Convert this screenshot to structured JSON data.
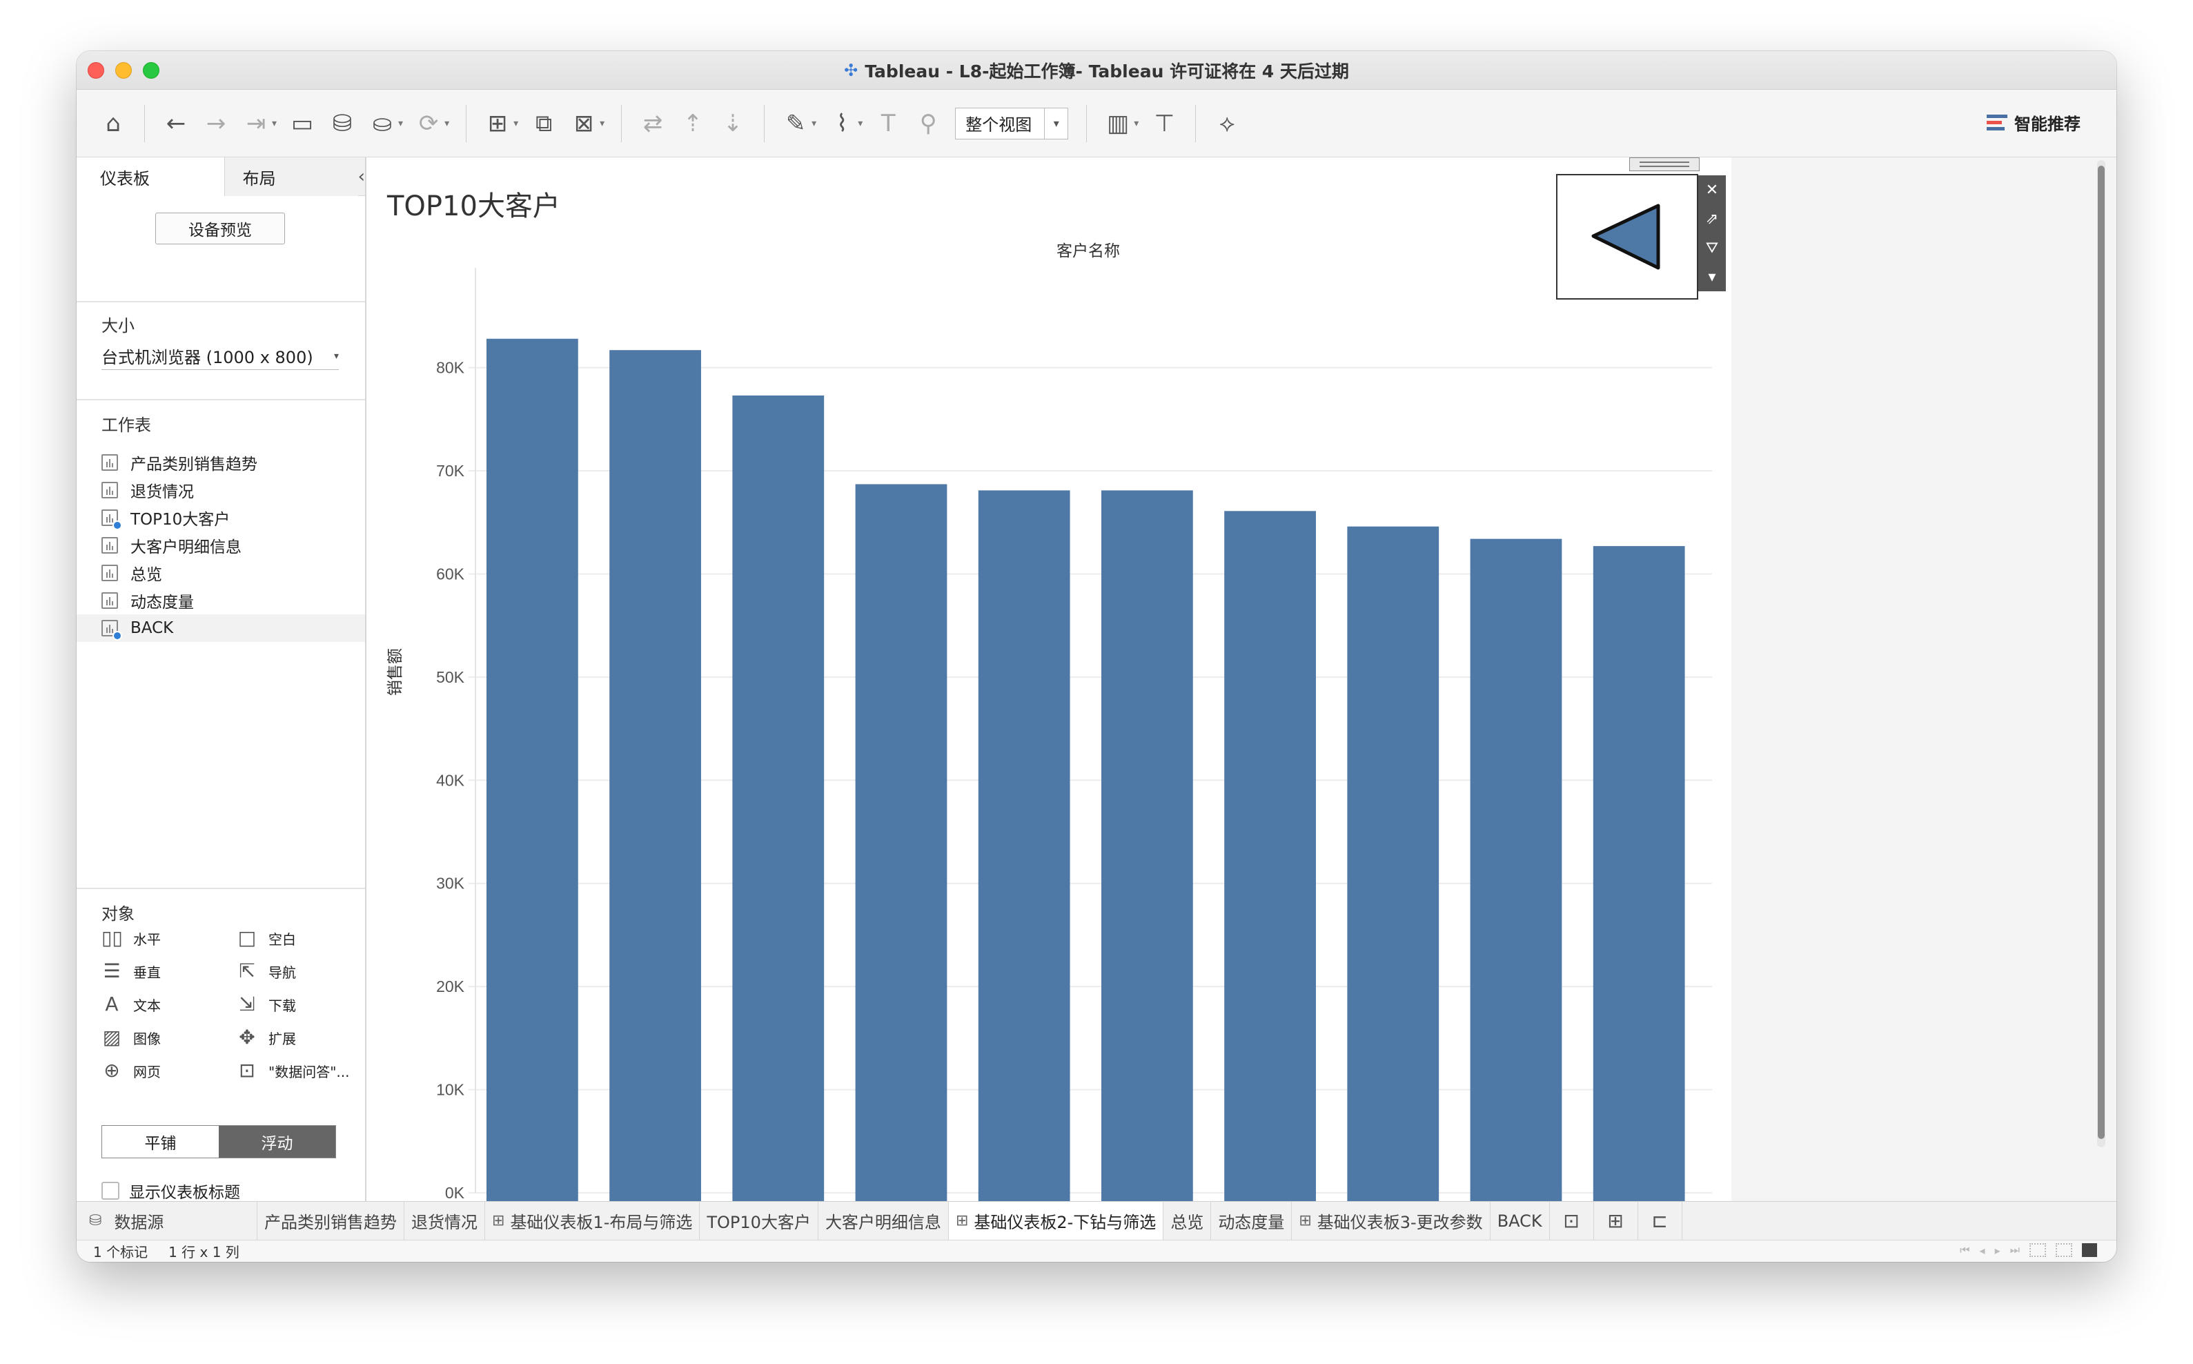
{
  "window": {
    "title": "Tableau - L8-起始工作簿- Tableau 许可证将在 4 天后过期"
  },
  "toolbar": {
    "view_select": "整个视图",
    "smart_label": "智能推荐"
  },
  "left_panel": {
    "tabs": [
      "仪表板",
      "布局"
    ],
    "device_preview": "设备预览",
    "size_label": "大小",
    "size_value": "台式机浏览器 (1000 x 800)",
    "sheets_label": "工作表",
    "sheets": [
      "产品类别销售趋势",
      "退货情况",
      "TOP10大客户",
      "大客户明细信息",
      "总览",
      "动态度量",
      "BACK"
    ],
    "objects_label": "对象",
    "objects": [
      {
        "label": "水平",
        "icon": "horizontal-icon"
      },
      {
        "label": "空白",
        "icon": "blank-icon"
      },
      {
        "label": "垂直",
        "icon": "vertical-icon"
      },
      {
        "label": "导航",
        "icon": "navigation-icon"
      },
      {
        "label": "文本",
        "icon": "text-icon"
      },
      {
        "label": "下载",
        "icon": "download-icon"
      },
      {
        "label": "图像",
        "icon": "image-icon"
      },
      {
        "label": "扩展",
        "icon": "extension-icon"
      },
      {
        "label": "网页",
        "icon": "webpage-icon"
      },
      {
        "label": "\"数据问答\"...",
        "icon": "ask-data-icon"
      }
    ],
    "tiled_label": "平铺",
    "floating_label": "浮动",
    "show_title_label": "显示仪表板标题"
  },
  "dashboard": {
    "title": "TOP10大客户",
    "column_header": "客户名称"
  },
  "chart_data": {
    "type": "bar",
    "title": "TOP10大客户",
    "xlabel": "客户名称",
    "ylabel": "销售额",
    "categories": [
      "",
      "",
      "",
      "",
      "",
      "",
      "",
      "",
      "",
      ""
    ],
    "values": [
      82800,
      81700,
      77300,
      68700,
      68100,
      68100,
      66100,
      64600,
      63400,
      62700
    ],
    "ylim": [
      0,
      87000
    ],
    "yticks": [
      0,
      10000,
      20000,
      30000,
      40000,
      50000,
      60000,
      70000,
      80000
    ],
    "ytick_labels": [
      "0K",
      "10K",
      "20K",
      "30K",
      "40K",
      "50K",
      "60K",
      "70K",
      "80K"
    ],
    "grid": true,
    "bar_color": "#4e79a7"
  },
  "bottom_tabs": [
    {
      "label": "数据源",
      "type": "datasource"
    },
    {
      "label": "产品类别销售趋势",
      "type": "sheet"
    },
    {
      "label": "退货情况",
      "type": "sheet"
    },
    {
      "label": "基础仪表板1-布局与筛选",
      "type": "dashboard"
    },
    {
      "label": "TOP10大客户",
      "type": "sheet"
    },
    {
      "label": "大客户明细信息",
      "type": "sheet"
    },
    {
      "label": "基础仪表板2-下钻与筛选",
      "type": "dashboard",
      "active": true
    },
    {
      "label": "总览",
      "type": "sheet"
    },
    {
      "label": "动态度量",
      "type": "sheet"
    },
    {
      "label": "基础仪表板3-更改参数",
      "type": "dashboard"
    },
    {
      "label": "BACK",
      "type": "sheet"
    }
  ],
  "status": {
    "marks": "1 个标记",
    "rows_cols": "1 行 x 1 列"
  },
  "colors": {
    "accent": "#4e79a7",
    "floating_active": "#666666"
  }
}
